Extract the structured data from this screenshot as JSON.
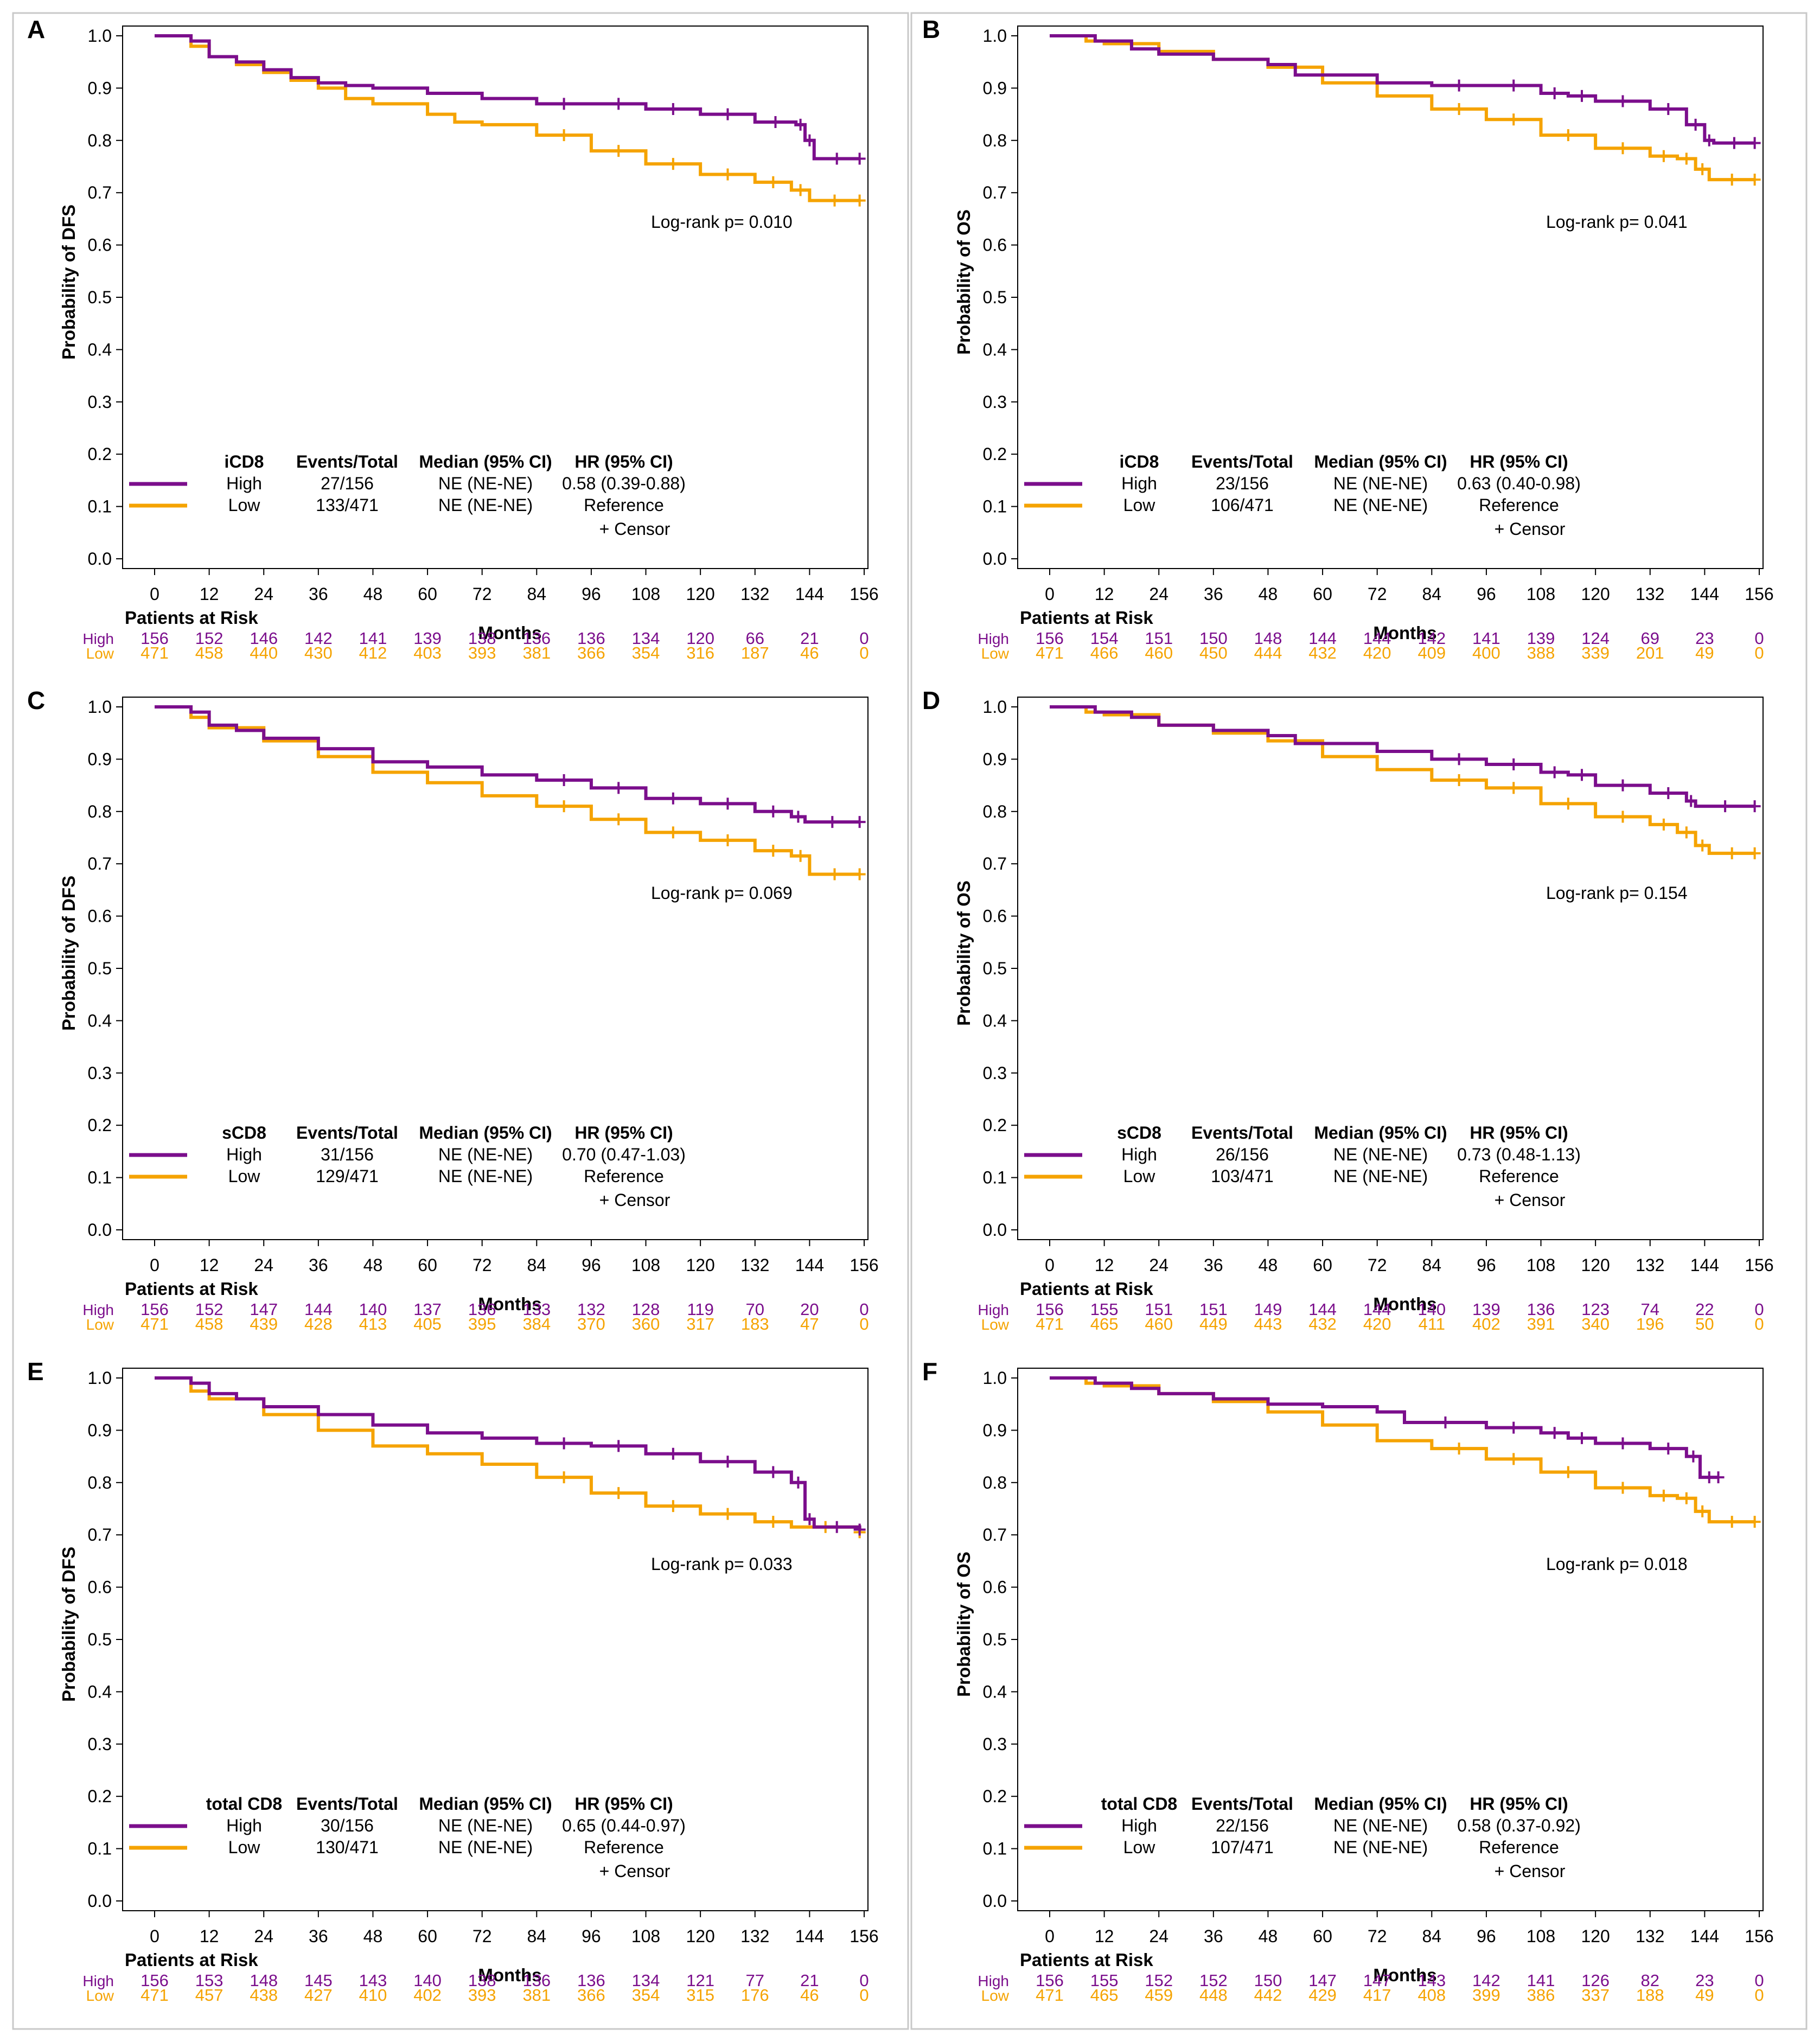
{
  "colors": {
    "high": "#7b0e8c",
    "low": "#f5a300",
    "axis": "#000000",
    "frame": "#c8c8c8"
  },
  "common": {
    "x_label": "Months",
    "risk_title": "Patients at Risk",
    "x_ticks": [
      0,
      12,
      24,
      36,
      48,
      60,
      72,
      84,
      96,
      108,
      120,
      132,
      144,
      156
    ],
    "y_ticks": [
      "0.0",
      "0.1",
      "0.2",
      "0.3",
      "0.4",
      "0.5",
      "0.6",
      "0.7",
      "0.8",
      "0.9",
      "1.0"
    ],
    "col_events": "Events/Total",
    "col_median": "Median (95% CI)",
    "col_hr": "HR (95% CI)",
    "censor_label": "+ Censor",
    "reference": "Reference",
    "high_label": "High",
    "low_label": "Low"
  },
  "chart_data": [
    {
      "panel": "A",
      "type": "line",
      "ylabel": "Probability of DFS",
      "xlabel": "Months",
      "xlim": [
        0,
        156
      ],
      "ylim": [
        0,
        1
      ],
      "legend_title": "iCD8",
      "pvalue": "Log-rank p= 0.010",
      "series": [
        {
          "name": "High",
          "events_total": "27/156",
          "median": "NE (NE-NE)",
          "hr": "0.58 (0.39-0.88)",
          "x": [
            0,
            8,
            12,
            18,
            24,
            30,
            36,
            42,
            48,
            60,
            72,
            84,
            96,
            108,
            120,
            132,
            141,
            143,
            145,
            155
          ],
          "y": [
            1.0,
            0.99,
            0.96,
            0.95,
            0.935,
            0.92,
            0.91,
            0.905,
            0.9,
            0.89,
            0.88,
            0.87,
            0.87,
            0.86,
            0.85,
            0.835,
            0.83,
            0.8,
            0.765,
            0.765
          ],
          "at_risk": [
            156,
            152,
            146,
            142,
            141,
            139,
            138,
            136,
            136,
            134,
            120,
            66,
            21,
            0
          ]
        },
        {
          "name": "Low",
          "events_total": "133/471",
          "median": "NE (NE-NE)",
          "hr": "Reference",
          "x": [
            0,
            8,
            12,
            18,
            24,
            30,
            36,
            42,
            48,
            60,
            66,
            72,
            84,
            96,
            108,
            120,
            132,
            140,
            144,
            155
          ],
          "y": [
            1.0,
            0.98,
            0.96,
            0.945,
            0.93,
            0.915,
            0.9,
            0.88,
            0.87,
            0.85,
            0.835,
            0.83,
            0.81,
            0.78,
            0.755,
            0.735,
            0.72,
            0.705,
            0.685,
            0.685
          ],
          "at_risk": [
            471,
            458,
            440,
            430,
            412,
            403,
            393,
            381,
            366,
            354,
            316,
            187,
            46,
            0
          ]
        }
      ]
    },
    {
      "panel": "B",
      "type": "line",
      "ylabel": "Probability of OS",
      "xlabel": "Months",
      "xlim": [
        0,
        156
      ],
      "ylim": [
        0,
        1
      ],
      "legend_title": "iCD8",
      "pvalue": "Log-rank p= 0.041",
      "series": [
        {
          "name": "High",
          "events_total": "23/156",
          "median": "NE (NE-NE)",
          "hr": "0.63 (0.40-0.98)",
          "x": [
            0,
            10,
            18,
            24,
            36,
            48,
            54,
            72,
            84,
            96,
            108,
            114,
            120,
            132,
            140,
            144,
            146,
            155
          ],
          "y": [
            1.0,
            0.99,
            0.975,
            0.965,
            0.955,
            0.945,
            0.925,
            0.91,
            0.905,
            0.905,
            0.89,
            0.885,
            0.875,
            0.86,
            0.83,
            0.8,
            0.795,
            0.795
          ],
          "at_risk": [
            156,
            154,
            151,
            150,
            148,
            144,
            144,
            142,
            141,
            139,
            124,
            69,
            23,
            0
          ]
        },
        {
          "name": "Low",
          "events_total": "106/471",
          "median": "NE (NE-NE)",
          "hr": "Reference",
          "x": [
            0,
            8,
            12,
            24,
            36,
            48,
            60,
            72,
            84,
            96,
            108,
            120,
            132,
            138,
            142,
            145,
            155
          ],
          "y": [
            1.0,
            0.99,
            0.985,
            0.97,
            0.955,
            0.94,
            0.91,
            0.885,
            0.86,
            0.84,
            0.81,
            0.785,
            0.77,
            0.765,
            0.745,
            0.725,
            0.725
          ],
          "at_risk": [
            471,
            466,
            460,
            450,
            444,
            432,
            420,
            409,
            400,
            388,
            339,
            201,
            49,
            0
          ]
        }
      ]
    },
    {
      "panel": "C",
      "type": "line",
      "ylabel": "Probability of DFS",
      "xlabel": "Months",
      "xlim": [
        0,
        156
      ],
      "ylim": [
        0,
        1
      ],
      "legend_title": "sCD8",
      "pvalue": "Log-rank p= 0.069",
      "series": [
        {
          "name": "High",
          "events_total": "31/156",
          "median": "NE (NE-NE)",
          "hr": "0.70 (0.47-1.03)",
          "x": [
            0,
            8,
            12,
            18,
            24,
            36,
            48,
            60,
            72,
            84,
            96,
            108,
            120,
            132,
            140,
            143,
            155
          ],
          "y": [
            1.0,
            0.99,
            0.965,
            0.955,
            0.94,
            0.92,
            0.895,
            0.885,
            0.87,
            0.86,
            0.845,
            0.825,
            0.815,
            0.8,
            0.79,
            0.78,
            0.78
          ],
          "at_risk": [
            156,
            152,
            147,
            144,
            140,
            137,
            136,
            133,
            132,
            128,
            119,
            70,
            20,
            0
          ]
        },
        {
          "name": "Low",
          "events_total": "129/471",
          "median": "NE (NE-NE)",
          "hr": "Reference",
          "x": [
            0,
            8,
            12,
            24,
            36,
            48,
            60,
            72,
            84,
            96,
            108,
            120,
            132,
            140,
            144,
            155
          ],
          "y": [
            1.0,
            0.98,
            0.96,
            0.935,
            0.905,
            0.875,
            0.855,
            0.83,
            0.81,
            0.785,
            0.76,
            0.745,
            0.725,
            0.715,
            0.68,
            0.68
          ],
          "at_risk": [
            471,
            458,
            439,
            428,
            413,
            405,
            395,
            384,
            370,
            360,
            317,
            183,
            47,
            0
          ]
        }
      ]
    },
    {
      "panel": "D",
      "type": "line",
      "ylabel": "Probability of OS",
      "xlabel": "Months",
      "xlim": [
        0,
        156
      ],
      "ylim": [
        0,
        1
      ],
      "legend_title": "sCD8",
      "pvalue": "Log-rank p= 0.154",
      "series": [
        {
          "name": "High",
          "events_total": "26/156",
          "median": "NE (NE-NE)",
          "hr": "0.73 (0.48-1.13)",
          "x": [
            0,
            10,
            18,
            24,
            36,
            48,
            54,
            72,
            84,
            96,
            108,
            114,
            120,
            132,
            140,
            142,
            155
          ],
          "y": [
            1.0,
            0.99,
            0.98,
            0.965,
            0.955,
            0.945,
            0.93,
            0.915,
            0.9,
            0.89,
            0.875,
            0.87,
            0.85,
            0.835,
            0.82,
            0.81,
            0.81
          ],
          "at_risk": [
            156,
            155,
            151,
            151,
            149,
            144,
            144,
            140,
            139,
            136,
            123,
            74,
            22,
            0
          ]
        },
        {
          "name": "Low",
          "events_total": "103/471",
          "median": "NE (NE-NE)",
          "hr": "Reference",
          "x": [
            0,
            8,
            12,
            24,
            36,
            48,
            60,
            72,
            84,
            96,
            108,
            120,
            132,
            138,
            142,
            145,
            155
          ],
          "y": [
            1.0,
            0.99,
            0.985,
            0.965,
            0.95,
            0.935,
            0.905,
            0.88,
            0.86,
            0.845,
            0.815,
            0.79,
            0.775,
            0.76,
            0.735,
            0.72,
            0.72
          ],
          "at_risk": [
            471,
            465,
            460,
            449,
            443,
            432,
            420,
            411,
            402,
            391,
            340,
            196,
            50,
            0
          ]
        }
      ]
    },
    {
      "panel": "E",
      "type": "line",
      "ylabel": "Probability of DFS",
      "xlabel": "Months",
      "xlim": [
        0,
        156
      ],
      "ylim": [
        0,
        1
      ],
      "legend_title": "total  CD8",
      "pvalue": "Log-rank p= 0.033",
      "series": [
        {
          "name": "High",
          "events_total": "30/156",
          "median": "NE (NE-NE)",
          "hr": "0.65 (0.44-0.97)",
          "x": [
            0,
            8,
            12,
            18,
            24,
            36,
            48,
            60,
            72,
            84,
            96,
            108,
            120,
            132,
            140,
            143,
            145,
            155
          ],
          "y": [
            1.0,
            0.99,
            0.97,
            0.96,
            0.945,
            0.93,
            0.91,
            0.895,
            0.885,
            0.875,
            0.87,
            0.855,
            0.84,
            0.82,
            0.8,
            0.73,
            0.715,
            0.71
          ],
          "at_risk": [
            156,
            153,
            148,
            145,
            143,
            140,
            138,
            136,
            136,
            134,
            121,
            77,
            21,
            0
          ]
        },
        {
          "name": "Low",
          "events_total": "130/471",
          "median": "NE (NE-NE)",
          "hr": "Reference",
          "x": [
            0,
            8,
            12,
            24,
            36,
            48,
            60,
            72,
            84,
            96,
            108,
            120,
            132,
            140,
            155
          ],
          "y": [
            1.0,
            0.975,
            0.96,
            0.93,
            0.9,
            0.87,
            0.855,
            0.835,
            0.81,
            0.78,
            0.755,
            0.74,
            0.725,
            0.715,
            0.705
          ],
          "at_risk": [
            471,
            457,
            438,
            427,
            410,
            402,
            393,
            381,
            366,
            354,
            315,
            176,
            46,
            0
          ]
        }
      ]
    },
    {
      "panel": "F",
      "type": "line",
      "ylabel": "Probability of OS",
      "xlabel": "Months",
      "xlim": [
        0,
        156
      ],
      "ylim": [
        0,
        1
      ],
      "legend_title": "total  CD8",
      "pvalue": "Log-rank p= 0.018",
      "series": [
        {
          "name": "High",
          "events_total": "22/156",
          "median": "NE (NE-NE)",
          "hr": "0.58 (0.37-0.92)",
          "x": [
            0,
            10,
            18,
            24,
            36,
            48,
            60,
            72,
            78,
            96,
            108,
            114,
            120,
            132,
            140,
            143,
            147
          ],
          "y": [
            1.0,
            0.99,
            0.98,
            0.97,
            0.96,
            0.95,
            0.945,
            0.935,
            0.915,
            0.905,
            0.895,
            0.885,
            0.875,
            0.865,
            0.85,
            0.81,
            0.81
          ],
          "at_risk": [
            156,
            155,
            152,
            152,
            150,
            147,
            147,
            143,
            142,
            141,
            126,
            82,
            23,
            0
          ]
        },
        {
          "name": "Low",
          "events_total": "107/471",
          "median": "NE (NE-NE)",
          "hr": "Reference",
          "x": [
            0,
            8,
            12,
            24,
            36,
            48,
            60,
            72,
            84,
            96,
            108,
            120,
            132,
            138,
            142,
            145,
            155
          ],
          "y": [
            1.0,
            0.99,
            0.985,
            0.97,
            0.955,
            0.935,
            0.91,
            0.88,
            0.865,
            0.845,
            0.82,
            0.79,
            0.775,
            0.77,
            0.745,
            0.725,
            0.725
          ],
          "at_risk": [
            471,
            465,
            459,
            448,
            442,
            429,
            417,
            408,
            399,
            386,
            337,
            188,
            49,
            0
          ]
        }
      ]
    }
  ]
}
